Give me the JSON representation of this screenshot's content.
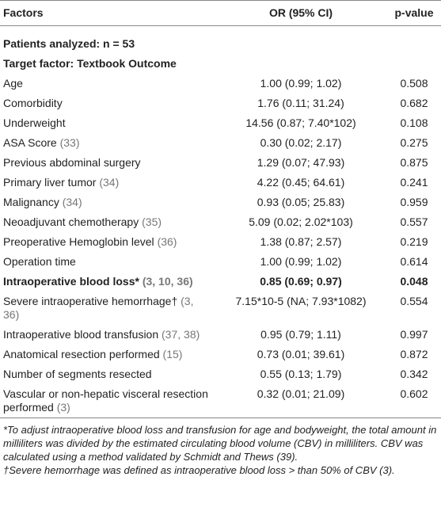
{
  "header": {
    "factor": "Factors",
    "or": "OR (95% CI)",
    "p": "p-value"
  },
  "patients": "Patients analyzed: n = 53",
  "target": "Target factor: Textbook Outcome",
  "rows": [
    {
      "factor": "Age",
      "or": "1.00 (0.99; 1.02)",
      "p": "0.508"
    },
    {
      "factor": "Comorbidity",
      "or": "1.76 (0.11; 31.24)",
      "p": "0.682"
    },
    {
      "factor": "Underweight",
      "or": "14.56 (0.87; 7.40*102)",
      "p": "0.108"
    },
    {
      "factor": "ASA Score",
      "ref": "(33)",
      "or": "0.30 (0.02; 2.17)",
      "p": "0.275"
    },
    {
      "factor": "Previous abdominal surgery",
      "or": "1.29 (0.07; 47.93)",
      "p": "0.875"
    },
    {
      "factor": "Primary liver tumor",
      "ref": "(34)",
      "or": "4.22 (0.45; 64.61)",
      "p": "0.241"
    },
    {
      "factor": "Malignancy",
      "ref": "(34)",
      "or": "0.93 (0.05; 25.83)",
      "p": "0.959"
    },
    {
      "factor": "Neoadjuvant chemotherapy",
      "ref": "(35)",
      "or": "5.09 (0.02; 2.02*103)",
      "p": "0.557"
    },
    {
      "factor": "Preoperative Hemoglobin level",
      "ref": "(36)",
      "or": "1.38 (0.87; 2.57)",
      "p": "0.219"
    },
    {
      "factor": "Operation time",
      "or": "1.00 (0.99; 1.02)",
      "p": "0.614"
    },
    {
      "factor": "Intraoperative blood loss*",
      "ref": "(3, 10, 36)",
      "or": "0.85 (0.69; 0.97)",
      "p": "0.048",
      "bold": true
    },
    {
      "factor": "Severe intraoperative hemorrhage†",
      "ref": "(3, 36)",
      "or": "7.15*10-5 (NA; 7.93*1082)",
      "p": "0.554"
    },
    {
      "factor": "Intraoperative blood transfusion",
      "ref": "(37, 38)",
      "or": "0.95 (0.79; 1.11)",
      "p": "0.997"
    },
    {
      "factor": "Anatomical resection performed",
      "ref": "(15)",
      "or": "0.73 (0.01; 39.61)",
      "p": "0.872"
    },
    {
      "factor": "Number of segments resected",
      "or": "0.55 (0.13; 1.79)",
      "p": "0.342"
    },
    {
      "factor": "Vascular or non-hepatic visceral resection performed",
      "ref": "(3)",
      "or": "0.32 (0.01; 21.09)",
      "p": "0.602"
    }
  ],
  "footnotes": [
    "*To adjust intraoperative blood loss and transfusion for age and bodyweight, the total amount in milliliters was divided by the estimated circulating blood volume (CBV) in milliliters. CBV was calculated using a method validated by Schmidt and Thews (39).",
    "†Severe hemorrhage was defined as intraoperative blood loss > than 50% of CBV (3)."
  ]
}
